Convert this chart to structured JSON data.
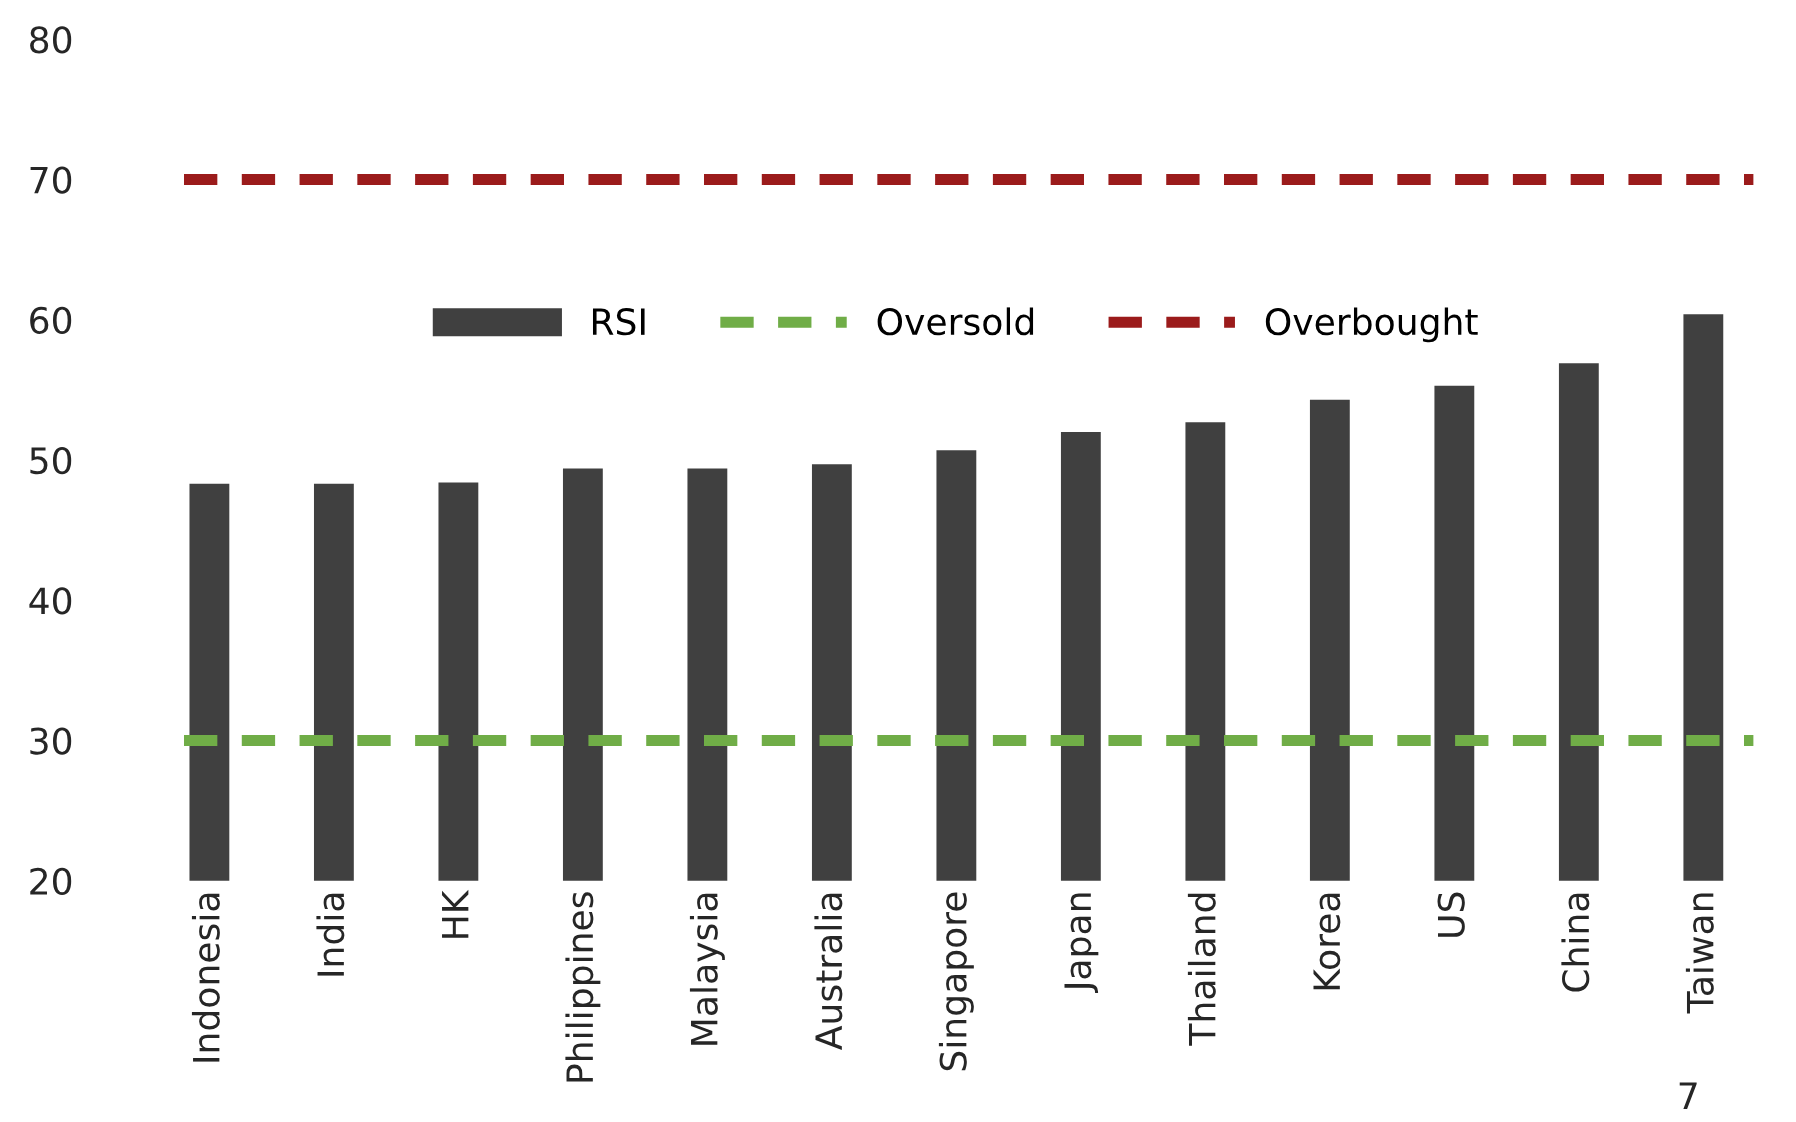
{
  "chart_data": {
    "type": "bar",
    "categories": [
      "Indonesia",
      "India",
      "HK",
      "Philippines",
      "Malaysia",
      "Australia",
      "Singapore",
      "Japan",
      "Thailand",
      "Korea",
      "US",
      "China",
      "Taiwan"
    ],
    "series": [
      {
        "name": "RSI",
        "color": "#404040",
        "values": [
          48.3,
          48.3,
          48.4,
          49.4,
          49.4,
          49.7,
          50.7,
          52.0,
          52.7,
          54.3,
          55.3,
          56.9,
          60.4
        ]
      }
    ],
    "ref_lines": [
      {
        "axis": "y",
        "value": 30,
        "label": "Oversold",
        "color": "#70ad47",
        "line_style": "dashed"
      },
      {
        "axis": "y",
        "value": 70,
        "label": "Overbought",
        "color": "#9b1b1b",
        "line_style": "dashed"
      }
    ],
    "ylim": [
      20,
      80
    ],
    "yticks": [
      20,
      30,
      40,
      50,
      60,
      70,
      80
    ],
    "grid": false,
    "legend": "top",
    "annotations": [
      "7"
    ]
  }
}
